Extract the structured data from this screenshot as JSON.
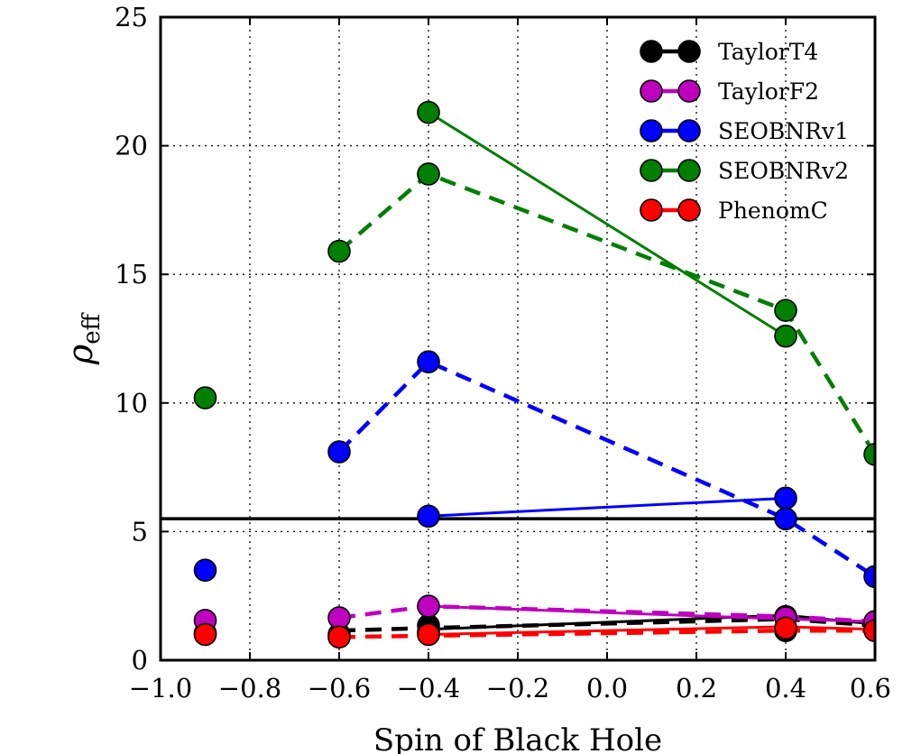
{
  "chart_data": {
    "type": "line",
    "xlabel": "Spin of Black Hole",
    "ylabel": "ρ",
    "ylabel_subscript": "eff",
    "xlim": [
      -1.0,
      0.6
    ],
    "ylim": [
      0,
      25
    ],
    "grid": true,
    "legend_position": "top-right",
    "x_ticks": [
      -1.0,
      -0.8,
      -0.6,
      -0.4,
      -0.2,
      0.0,
      0.2,
      0.4,
      0.6
    ],
    "x_tick_labels": [
      "−1.0",
      "−0.8",
      "−0.6",
      "−0.4",
      "−0.2",
      "0.0",
      "0.2",
      "0.4",
      "0.6"
    ],
    "y_ticks": [
      0,
      5,
      10,
      15,
      20,
      25
    ],
    "y_tick_labels": [
      "0",
      "5",
      "10",
      "15",
      "20",
      "25"
    ],
    "threshold_line": {
      "y": 5.5,
      "color": "#000000"
    },
    "series": [
      {
        "name": "TaylorT4",
        "color": "#000000",
        "dashed": {
          "x": [
            -0.6,
            -0.4,
            0.4,
            0.6
          ],
          "y": [
            1.15,
            1.25,
            1.6,
            1.35
          ]
        },
        "solid": {
          "x": [
            -0.4,
            0.4,
            0.6
          ],
          "y": [
            1.2,
            1.75,
            1.4
          ]
        },
        "points": {
          "x": [
            -0.9,
            -0.6,
            -0.4,
            -0.4,
            0.4,
            0.4,
            0.6
          ],
          "y": [
            1.05,
            1.0,
            1.35,
            1.1,
            1.7,
            1.15,
            1.3
          ]
        }
      },
      {
        "name": "TaylorF2",
        "color": "#bf00bf",
        "dashed": {
          "x": [
            -0.6,
            -0.4,
            0.4,
            0.6
          ],
          "y": [
            1.65,
            2.1,
            1.7,
            1.5
          ]
        },
        "solid": {
          "x": [
            -0.4,
            0.4,
            0.6
          ],
          "y": [
            2.1,
            1.6,
            1.5
          ]
        },
        "points": {
          "x": [
            -0.9,
            -0.6,
            -0.4,
            0.4,
            0.6
          ],
          "y": [
            1.55,
            1.65,
            2.1,
            1.65,
            1.5
          ]
        }
      },
      {
        "name": "SEOBNRv1",
        "color": "#0000ff",
        "dashed": {
          "x": [
            -0.6,
            -0.4,
            0.4,
            0.6
          ],
          "y": [
            8.1,
            11.6,
            5.5,
            3.25
          ]
        },
        "solid": {
          "x": [
            -0.4,
            0.4
          ],
          "y": [
            5.6,
            6.3
          ]
        },
        "points": {
          "x": [
            -0.9,
            -0.6,
            -0.4,
            -0.4,
            0.4,
            0.4,
            0.6
          ],
          "y": [
            3.5,
            8.1,
            11.6,
            5.6,
            6.3,
            5.5,
            3.25
          ]
        }
      },
      {
        "name": "SEOBNRv2",
        "color": "#007f00",
        "dashed": {
          "x": [
            -0.6,
            -0.4,
            0.4,
            0.6
          ],
          "y": [
            15.9,
            18.9,
            13.6,
            8.0
          ]
        },
        "solid": {
          "x": [
            -0.4,
            0.4
          ],
          "y": [
            21.3,
            12.6
          ]
        },
        "points": {
          "x": [
            -0.9,
            -0.6,
            -0.4,
            -0.4,
            0.4,
            0.4,
            0.6
          ],
          "y": [
            10.2,
            15.9,
            18.9,
            21.3,
            13.6,
            12.6,
            8.0
          ]
        }
      },
      {
        "name": "PhenomC",
        "color": "#ff0000",
        "dashed": {
          "x": [
            -0.6,
            -0.4,
            0.4,
            0.6
          ],
          "y": [
            0.9,
            0.95,
            1.15,
            1.15
          ]
        },
        "solid": {
          "x": [
            -0.4,
            0.4,
            0.6
          ],
          "y": [
            1.0,
            1.3,
            1.2
          ]
        },
        "points": {
          "x": [
            -0.9,
            -0.6,
            -0.4,
            0.4,
            0.6
          ],
          "y": [
            1.0,
            0.9,
            1.0,
            1.25,
            1.15
          ]
        }
      }
    ]
  }
}
